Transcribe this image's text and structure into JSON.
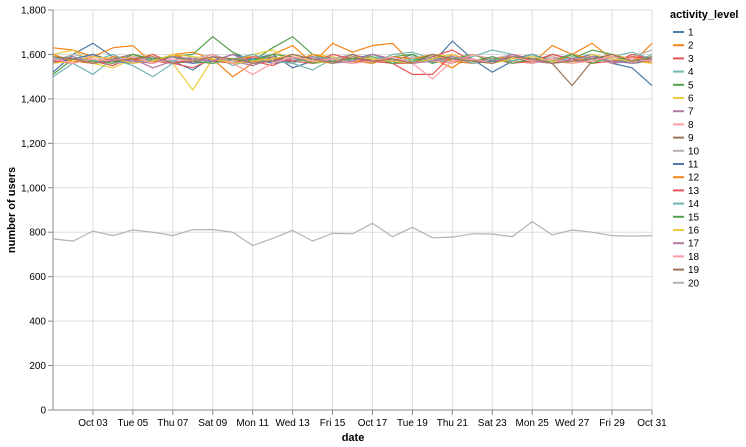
{
  "chart_data": {
    "type": "line",
    "xlabel": "date",
    "ylabel": "number of users",
    "ylim": [
      0,
      1800
    ],
    "y_ticks": [
      0,
      200,
      400,
      600,
      800,
      1000,
      1200,
      1400,
      1600,
      1800
    ],
    "y_tick_labels": [
      "0",
      "200",
      "400",
      "600",
      "800",
      "1,000",
      "1,200",
      "1,400",
      "1,600",
      "1,800"
    ],
    "x_range": [
      "2021-10-01",
      "2021-10-31"
    ],
    "x_ticks": [
      "2021-10-03",
      "2021-10-05",
      "2021-10-07",
      "2021-10-09",
      "2021-10-11",
      "2021-10-13",
      "2021-10-15",
      "2021-10-17",
      "2021-10-19",
      "2021-10-21",
      "2021-10-23",
      "2021-10-25",
      "2021-10-27",
      "2021-10-29",
      "2021-10-31"
    ],
    "x_tick_labels": [
      "Oct 03",
      "Tue 05",
      "Thu 07",
      "Sat 09",
      "Mon 11",
      "Wed 13",
      "Fri 15",
      "Oct 17",
      "Tue 19",
      "Thu 21",
      "Sat 23",
      "Mon 25",
      "Wed 27",
      "Fri 29",
      "Oct 31"
    ],
    "grid": true,
    "legend_title": "activity_level",
    "legend_position": "right",
    "x": [
      "2021-10-01",
      "2021-10-02",
      "2021-10-03",
      "2021-10-04",
      "2021-10-05",
      "2021-10-06",
      "2021-10-07",
      "2021-10-08",
      "2021-10-09",
      "2021-10-10",
      "2021-10-11",
      "2021-10-12",
      "2021-10-13",
      "2021-10-14",
      "2021-10-15",
      "2021-10-16",
      "2021-10-17",
      "2021-10-18",
      "2021-10-19",
      "2021-10-20",
      "2021-10-21",
      "2021-10-22",
      "2021-10-23",
      "2021-10-24",
      "2021-10-25",
      "2021-10-26",
      "2021-10-27",
      "2021-10-28",
      "2021-10-29",
      "2021-10-30",
      "2021-10-31"
    ],
    "series": [
      {
        "name": "1",
        "color": "#4c78a8",
        "values": [
          1520,
          1600,
          1650,
          1590,
          1560,
          1580,
          1570,
          1530,
          1590,
          1560,
          1580,
          1600,
          1540,
          1570,
          1590,
          1560,
          1580,
          1570,
          1600,
          1560,
          1660,
          1580,
          1520,
          1570,
          1590,
          1560,
          1580,
          1600,
          1560,
          1540,
          1460
        ]
      },
      {
        "name": "2",
        "color": "#f58518",
        "values": [
          1630,
          1620,
          1590,
          1630,
          1640,
          1560,
          1600,
          1610,
          1580,
          1500,
          1560,
          1600,
          1640,
          1560,
          1650,
          1610,
          1640,
          1650,
          1560,
          1580,
          1540,
          1600,
          1570,
          1590,
          1560,
          1640,
          1600,
          1650,
          1580,
          1560,
          1650
        ]
      },
      {
        "name": "3",
        "color": "#e45756",
        "values": [
          1560,
          1580,
          1570,
          1550,
          1590,
          1570,
          1560,
          1540,
          1580,
          1560,
          1570,
          1550,
          1590,
          1560,
          1580,
          1600,
          1570,
          1560,
          1560,
          1590,
          1620,
          1570,
          1560,
          1600,
          1580,
          1560,
          1570,
          1590,
          1560,
          1600,
          1580
        ]
      },
      {
        "name": "4",
        "color": "#72b7b2",
        "values": [
          1500,
          1560,
          1510,
          1580,
          1550,
          1500,
          1560,
          1580,
          1600,
          1550,
          1580,
          1590,
          1560,
          1530,
          1580,
          1600,
          1560,
          1600,
          1610,
          1580,
          1560,
          1590,
          1620,
          1600,
          1560,
          1580,
          1600,
          1560,
          1590,
          1610,
          1580
        ]
      },
      {
        "name": "5",
        "color": "#54a24b",
        "values": [
          1510,
          1580,
          1600,
          1570,
          1590,
          1570,
          1590,
          1600,
          1680,
          1610,
          1570,
          1630,
          1680,
          1600,
          1570,
          1580,
          1560,
          1590,
          1600,
          1560,
          1580,
          1600,
          1570,
          1590,
          1560,
          1600,
          1580,
          1620,
          1600,
          1570,
          1590
        ]
      },
      {
        "name": "6",
        "color": "#eeca3b",
        "values": [
          1600,
          1620,
          1560,
          1540,
          1580,
          1600,
          1560,
          1440,
          1580,
          1570,
          1600,
          1620,
          1570,
          1600,
          1590,
          1560,
          1600,
          1580,
          1560,
          1600,
          1590,
          1570,
          1560,
          1580,
          1600,
          1570,
          1590,
          1560,
          1600,
          1580,
          1570
        ]
      },
      {
        "name": "7",
        "color": "#b279a2",
        "values": [
          1560,
          1590,
          1570,
          1560,
          1580,
          1540,
          1570,
          1560,
          1590,
          1570,
          1550,
          1580,
          1560,
          1590,
          1570,
          1560,
          1580,
          1570,
          1560,
          1580,
          1570,
          1560,
          1590,
          1570,
          1560,
          1580,
          1570,
          1590,
          1560,
          1570,
          1580
        ]
      },
      {
        "name": "8",
        "color": "#ff9da6",
        "values": [
          1580,
          1560,
          1600,
          1570,
          1560,
          1590,
          1560,
          1580,
          1570,
          1600,
          1560,
          1580,
          1590,
          1560,
          1570,
          1600,
          1580,
          1560,
          1590,
          1570,
          1560,
          1600,
          1580,
          1570,
          1560,
          1590,
          1580,
          1570,
          1600,
          1560,
          1580
        ]
      },
      {
        "name": "9",
        "color": "#9d755d",
        "values": [
          1590,
          1570,
          1560,
          1580,
          1600,
          1570,
          1590,
          1560,
          1570,
          1580,
          1560,
          1590,
          1570,
          1580,
          1560,
          1600,
          1570,
          1580,
          1560,
          1590,
          1570,
          1560,
          1580,
          1570,
          1600,
          1560,
          1460,
          1570,
          1590,
          1580,
          1560
        ]
      },
      {
        "name": "10",
        "color": "#bab0ac",
        "values": [
          1570,
          1600,
          1580,
          1560,
          1570,
          1590,
          1560,
          1580,
          1600,
          1570,
          1560,
          1580,
          1570,
          1590,
          1560,
          1580,
          1570,
          1560,
          1590,
          1580,
          1570,
          1560,
          1580,
          1600,
          1570,
          1590,
          1560,
          1580,
          1570,
          1590,
          1620
        ]
      },
      {
        "name": "11",
        "color": "#4c78a8",
        "values": [
          1560,
          1580,
          1600,
          1570,
          1560,
          1580,
          1590,
          1560,
          1570,
          1600,
          1580,
          1560,
          1570,
          1590,
          1560,
          1580,
          1600,
          1570,
          1560,
          1580,
          1590,
          1560,
          1570,
          1580,
          1600,
          1570,
          1560,
          1590,
          1580,
          1560,
          1570
        ]
      },
      {
        "name": "12",
        "color": "#f58518",
        "values": [
          1600,
          1570,
          1560,
          1590,
          1580,
          1560,
          1600,
          1570,
          1560,
          1580,
          1590,
          1570,
          1560,
          1600,
          1580,
          1570,
          1560,
          1590,
          1580,
          1600,
          1570,
          1560,
          1580,
          1590,
          1570,
          1560,
          1600,
          1580,
          1570,
          1590,
          1560
        ]
      },
      {
        "name": "13",
        "color": "#e45756",
        "values": [
          1570,
          1560,
          1590,
          1580,
          1570,
          1600,
          1560,
          1580,
          1570,
          1560,
          1590,
          1580,
          1570,
          1560,
          1600,
          1580,
          1570,
          1560,
          1510,
          1510,
          1600,
          1570,
          1580,
          1560,
          1570,
          1600,
          1580,
          1560,
          1570,
          1590,
          1580
        ]
      },
      {
        "name": "14",
        "color": "#72b7b2",
        "values": [
          1580,
          1590,
          1570,
          1600,
          1560,
          1580,
          1570,
          1590,
          1560,
          1580,
          1600,
          1570,
          1560,
          1590,
          1580,
          1570,
          1600,
          1560,
          1580,
          1570,
          1590,
          1560,
          1580,
          1570,
          1600,
          1560,
          1590,
          1580,
          1570,
          1560,
          1600
        ]
      },
      {
        "name": "15",
        "color": "#54a24b",
        "values": [
          1590,
          1580,
          1570,
          1560,
          1600,
          1580,
          1590,
          1570,
          1560,
          1580,
          1570,
          1600,
          1590,
          1560,
          1570,
          1580,
          1590,
          1560,
          1570,
          1600,
          1580,
          1570,
          1590,
          1560,
          1580,
          1570,
          1600,
          1560,
          1590,
          1570,
          1580
        ]
      },
      {
        "name": "16",
        "color": "#eeca3b",
        "values": [
          1560,
          1570,
          1590,
          1580,
          1560,
          1570,
          1600,
          1590,
          1580,
          1560,
          1570,
          1580,
          1600,
          1570,
          1560,
          1590,
          1580,
          1570,
          1560,
          1580,
          1600,
          1570,
          1560,
          1580,
          1590,
          1570,
          1560,
          1600,
          1580,
          1570,
          1560
        ]
      },
      {
        "name": "17",
        "color": "#b279a2",
        "values": [
          1570,
          1590,
          1560,
          1580,
          1570,
          1560,
          1590,
          1580,
          1570,
          1600,
          1560,
          1570,
          1580,
          1590,
          1560,
          1570,
          1600,
          1580,
          1560,
          1570,
          1590,
          1580,
          1560,
          1600,
          1570,
          1560,
          1580,
          1590,
          1570,
          1560,
          1580
        ]
      },
      {
        "name": "18",
        "color": "#ff9da6",
        "values": [
          1580,
          1560,
          1580,
          1570,
          1590,
          1560,
          1580,
          1570,
          1600,
          1560,
          1510,
          1560,
          1590,
          1570,
          1580,
          1560,
          1570,
          1590,
          1560,
          1490,
          1570,
          1580,
          1560,
          1590,
          1570,
          1580,
          1560,
          1570,
          1590,
          1580,
          1570
        ]
      },
      {
        "name": "19",
        "color": "#9d755d",
        "values": [
          1590,
          1580,
          1560,
          1570,
          1580,
          1590,
          1560,
          1570,
          1590,
          1580,
          1560,
          1570,
          1600,
          1580,
          1560,
          1590,
          1570,
          1580,
          1560,
          1600,
          1580,
          1570,
          1560,
          1590,
          1580,
          1560,
          1570,
          1580,
          1600,
          1570,
          1590
        ]
      },
      {
        "name": "20",
        "color": "#bab0ac",
        "values": [
          770,
          760,
          805,
          785,
          810,
          800,
          785,
          812,
          812,
          800,
          740,
          772,
          808,
          760,
          795,
          793,
          840,
          780,
          822,
          775,
          778,
          793,
          792,
          780,
          848,
          788,
          810,
          800,
          785,
          782,
          785
        ]
      }
    ]
  }
}
